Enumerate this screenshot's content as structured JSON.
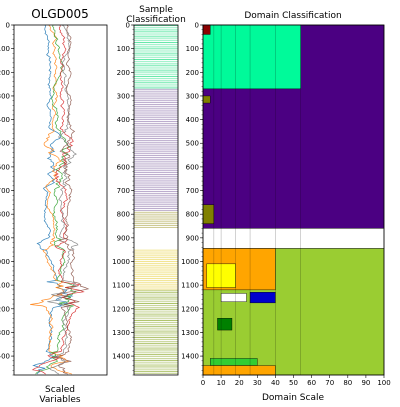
{
  "chart_data": [
    {
      "type": "line",
      "title": "OLGD005",
      "xlabel": "Scaled\nVariables",
      "ylim": [
        0,
        1480
      ],
      "y_inverted": true,
      "yticks": [
        0,
        100,
        200,
        300,
        400,
        500,
        600,
        700,
        800,
        900,
        1000,
        1100,
        1200,
        1300,
        1400
      ],
      "series": [
        {
          "color": "#1f77b4"
        },
        {
          "color": "#ff7f0e"
        },
        {
          "color": "#2ca02c"
        },
        {
          "color": "#d62728"
        },
        {
          "color": "#7f7f7f"
        },
        {
          "color": "#8c564b"
        }
      ]
    },
    {
      "type": "heatmap",
      "title": "Sample\nClassification",
      "ylim": [
        0,
        1480
      ],
      "y_inverted": true,
      "yticks": [
        0,
        100,
        200,
        300,
        400,
        500,
        600,
        700,
        800,
        900,
        1000,
        1100,
        1200,
        1300,
        1400
      ],
      "bands": [
        {
          "from": 0,
          "to": 270,
          "color": "#55e6a0"
        },
        {
          "from": 270,
          "to": 790,
          "color": "#8a6fa8"
        },
        {
          "from": 790,
          "to": 855,
          "color": "#a8a040"
        },
        {
          "from": 855,
          "to": 950,
          "color": "#ffffff"
        },
        {
          "from": 950,
          "to": 1120,
          "color": "#e8d040"
        },
        {
          "from": 1120,
          "to": 1480,
          "color": "#a0b850"
        }
      ]
    },
    {
      "type": "heatmap",
      "title": "Domain Classification",
      "xlabel": "Domain Scale",
      "xlim": [
        0,
        100
      ],
      "ylim": [
        0,
        1480
      ],
      "y_inverted": true,
      "xticks": [
        0,
        10,
        20,
        30,
        40,
        50,
        60,
        70,
        80,
        90,
        100
      ],
      "yticks": [
        0,
        100,
        200,
        300,
        400,
        500,
        600,
        700,
        800,
        900,
        1000,
        1100,
        1200,
        1300,
        1400
      ],
      "domains": [
        {
          "x0": 0,
          "x1": 100,
          "y0": 0,
          "y1": 860,
          "color": "#4b0082"
        },
        {
          "x0": 0,
          "x1": 54,
          "y0": 0,
          "y1": 270,
          "color": "#00fa9a"
        },
        {
          "x0": 0,
          "x1": 100,
          "y0": 860,
          "y1": 945,
          "color": "#ffffff"
        },
        {
          "x0": 0,
          "x1": 100,
          "y0": 945,
          "y1": 1480,
          "color": "#9acd32"
        },
        {
          "x0": 0,
          "x1": 40,
          "y0": 945,
          "y1": 1120,
          "color": "#ffa500"
        },
        {
          "x0": 2,
          "x1": 18,
          "y0": 1010,
          "y1": 1110,
          "color": "#ffff00"
        },
        {
          "x0": 26,
          "x1": 40,
          "y0": 1130,
          "y1": 1175,
          "color": "#0000cd"
        },
        {
          "x0": 10,
          "x1": 24,
          "y0": 1135,
          "y1": 1170,
          "color": "#ffffff"
        },
        {
          "x0": 8,
          "x1": 16,
          "y0": 1240,
          "y1": 1290,
          "color": "#008000"
        },
        {
          "x0": 4,
          "x1": 30,
          "y0": 1410,
          "y1": 1440,
          "color": "#32cd32"
        },
        {
          "x0": 0,
          "x1": 40,
          "y0": 1440,
          "y1": 1480,
          "color": "#ffa500"
        },
        {
          "x0": 0,
          "x1": 6,
          "y0": 760,
          "y1": 840,
          "color": "#808000"
        },
        {
          "x0": 0,
          "x1": 4,
          "y0": 0,
          "y1": 40,
          "color": "#8b0000"
        },
        {
          "x0": 0,
          "x1": 4,
          "y0": 300,
          "y1": 330,
          "color": "#808000"
        }
      ]
    }
  ]
}
